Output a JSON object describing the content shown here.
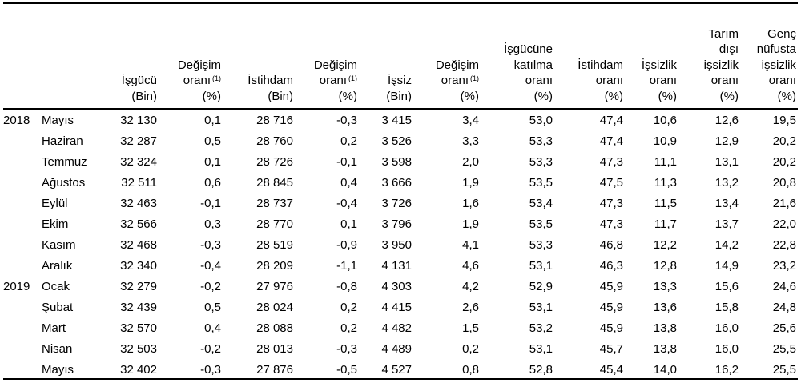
{
  "headers": [
    {
      "lines": [
        "İşgücü",
        "(Bin)"
      ]
    },
    {
      "lines": [
        "Değişim",
        "oranı",
        "(%)"
      ],
      "sup_line": 1,
      "sup": "(1)"
    },
    {
      "lines": [
        "İstihdam",
        "(Bin)"
      ]
    },
    {
      "lines": [
        "Değişim",
        "oranı",
        "(%)"
      ],
      "sup_line": 1,
      "sup": "(1)"
    },
    {
      "lines": [
        "İşsiz",
        "(Bin)"
      ]
    },
    {
      "lines": [
        "Değişim",
        "oranı",
        "(%)"
      ],
      "sup_line": 1,
      "sup": "(1)"
    },
    {
      "lines": [
        "İşgücüne",
        "katılma",
        "oranı",
        "(%)"
      ]
    },
    {
      "lines": [
        "İstihdam",
        "oranı",
        "(%)"
      ]
    },
    {
      "lines": [
        "İşsizlik",
        "oranı",
        "(%)"
      ]
    },
    {
      "lines": [
        "Tarım",
        "dışı",
        "işsizlik",
        "oranı",
        "(%)"
      ]
    },
    {
      "lines": [
        "Genç",
        "nüfusta",
        "işsizlik",
        "oranı",
        "(%)"
      ]
    }
  ],
  "rows": [
    {
      "year": "2018",
      "month": "Mayıs",
      "values": [
        "32 130",
        "0,1",
        "28 716",
        "-0,3",
        "3 415",
        "3,4",
        "53,0",
        "47,4",
        "10,6",
        "12,6",
        "19,5"
      ]
    },
    {
      "year": "",
      "month": "Haziran",
      "values": [
        "32 287",
        "0,5",
        "28 760",
        "0,2",
        "3 526",
        "3,3",
        "53,3",
        "47,4",
        "10,9",
        "12,9",
        "20,2"
      ]
    },
    {
      "year": "",
      "month": "Temmuz",
      "values": [
        "32 324",
        "0,1",
        "28 726",
        "-0,1",
        "3 598",
        "2,0",
        "53,3",
        "47,3",
        "11,1",
        "13,1",
        "20,2"
      ]
    },
    {
      "year": "",
      "month": "Ağustos",
      "values": [
        "32 511",
        "0,6",
        "28 845",
        "0,4",
        "3 666",
        "1,9",
        "53,5",
        "47,5",
        "11,3",
        "13,2",
        "20,8"
      ]
    },
    {
      "year": "",
      "month": "Eylül",
      "values": [
        "32 463",
        "-0,1",
        "28 737",
        "-0,4",
        "3 726",
        "1,6",
        "53,4",
        "47,3",
        "11,5",
        "13,4",
        "21,6"
      ]
    },
    {
      "year": "",
      "month": "Ekim",
      "values": [
        "32 566",
        "0,3",
        "28 770",
        "0,1",
        "3 796",
        "1,9",
        "53,5",
        "47,3",
        "11,7",
        "13,7",
        "22,0"
      ]
    },
    {
      "year": "",
      "month": "Kasım",
      "values": [
        "32 468",
        "-0,3",
        "28 519",
        "-0,9",
        "3 950",
        "4,1",
        "53,3",
        "46,8",
        "12,2",
        "14,2",
        "22,8"
      ]
    },
    {
      "year": "",
      "month": "Aralık",
      "values": [
        "32 340",
        "-0,4",
        "28 209",
        "-1,1",
        "4 131",
        "4,6",
        "53,1",
        "46,3",
        "12,8",
        "14,9",
        "23,2"
      ]
    },
    {
      "year": "2019",
      "month": "Ocak",
      "values": [
        "32 279",
        "-0,2",
        "27 976",
        "-0,8",
        "4 303",
        "4,2",
        "52,9",
        "45,9",
        "13,3",
        "15,6",
        "24,6"
      ]
    },
    {
      "year": "",
      "month": "Şubat",
      "values": [
        "32 439",
        "0,5",
        "28 024",
        "0,2",
        "4 415",
        "2,6",
        "53,1",
        "45,9",
        "13,6",
        "15,8",
        "24,8"
      ]
    },
    {
      "year": "",
      "month": "Mart",
      "values": [
        "32 570",
        "0,4",
        "28 088",
        "0,2",
        "4 482",
        "1,5",
        "53,2",
        "45,9",
        "13,8",
        "16,0",
        "25,6"
      ]
    },
    {
      "year": "",
      "month": "Nisan",
      "values": [
        "32 503",
        "-0,2",
        "28 013",
        "-0,3",
        "4 489",
        "0,2",
        "53,1",
        "45,7",
        "13,8",
        "16,0",
        "25,5"
      ]
    },
    {
      "year": "",
      "month": "Mayıs",
      "values": [
        "32 402",
        "-0,3",
        "27 876",
        "-0,5",
        "4 527",
        "0,8",
        "52,8",
        "45,4",
        "14,0",
        "16,2",
        "25,5"
      ]
    }
  ]
}
